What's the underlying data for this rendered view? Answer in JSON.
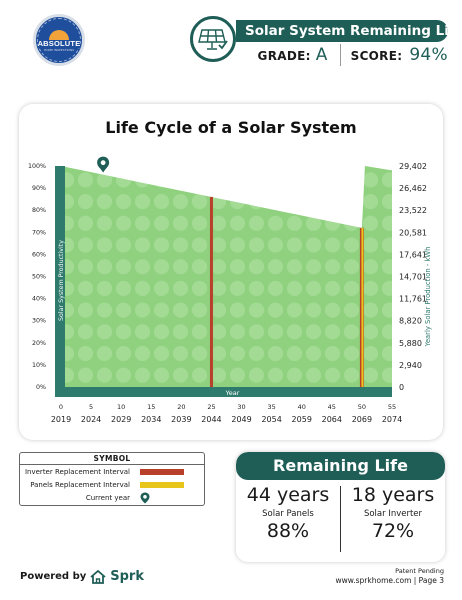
{
  "header": {
    "logo_text": "ABSOLUTE",
    "logo_sub": "HOME INSPECTIONS",
    "title": "Solar System Remaining Life",
    "grade_label": "GRADE:",
    "grade_value": "A",
    "score_label": "SCORE:",
    "score_value": "94%"
  },
  "chart_data": {
    "type": "area",
    "title": "Life Cycle of a Solar System",
    "xlabel": "Year",
    "ylabel_left": "Solar System Productivity",
    "ylabel_right": "Yearly Solar Production - kWh",
    "x_offsets": [
      0,
      5,
      10,
      15,
      20,
      25,
      30,
      35,
      40,
      45,
      50,
      55
    ],
    "x_years": [
      "2019",
      "2024",
      "2029",
      "2034",
      "2039",
      "2044",
      "2049",
      "2054",
      "2059",
      "2064",
      "2069",
      "2074"
    ],
    "y_left_ticks": [
      "0%",
      "10%",
      "20%",
      "30%",
      "40%",
      "50%",
      "60%",
      "70%",
      "80%",
      "90%",
      "100%"
    ],
    "y_right_ticks": [
      "0",
      "2,940",
      "5,880",
      "8,820",
      "11,761",
      "14,701",
      "17,641",
      "20,581",
      "23,522",
      "26,462",
      "29,402"
    ],
    "series": [
      {
        "x": [
          0,
          25,
          50,
          50.5,
          55
        ],
        "y": [
          100,
          86,
          72,
          100,
          98
        ]
      }
    ],
    "xlim": [
      0,
      55
    ],
    "ylim": [
      0,
      100
    ],
    "inverter_replacement_x": 25,
    "panel_replacement_x": 50,
    "current_year_x": 7,
    "colors": {
      "area": "#8fd17f",
      "area_dots": "#a3db94",
      "axis_band": "#2e7a6c",
      "inverter": "#b8402a",
      "panels": "#e8c51a",
      "marker": "#1f5e57"
    }
  },
  "legend": {
    "heading": "SYMBOL",
    "items": [
      {
        "label": "Inverter Replacement Interval",
        "color": "#b8402a"
      },
      {
        "label": "Panels Replacement Interval",
        "color": "#e8c51a"
      },
      {
        "label": "Current year",
        "icon": "location-pin-icon"
      }
    ]
  },
  "remaining": {
    "heading": "Remaining Life",
    "panels": {
      "years": "44 years",
      "label": "Solar Panels",
      "pct": "88%"
    },
    "inverter": {
      "years": "18 years",
      "label": "Solar Inverter",
      "pct": "72%"
    }
  },
  "footer": {
    "powered_by": "Powered by",
    "brand": "Sprk",
    "patent": "Patent Pending",
    "site": "www.sprkhome.com | Page 3"
  }
}
